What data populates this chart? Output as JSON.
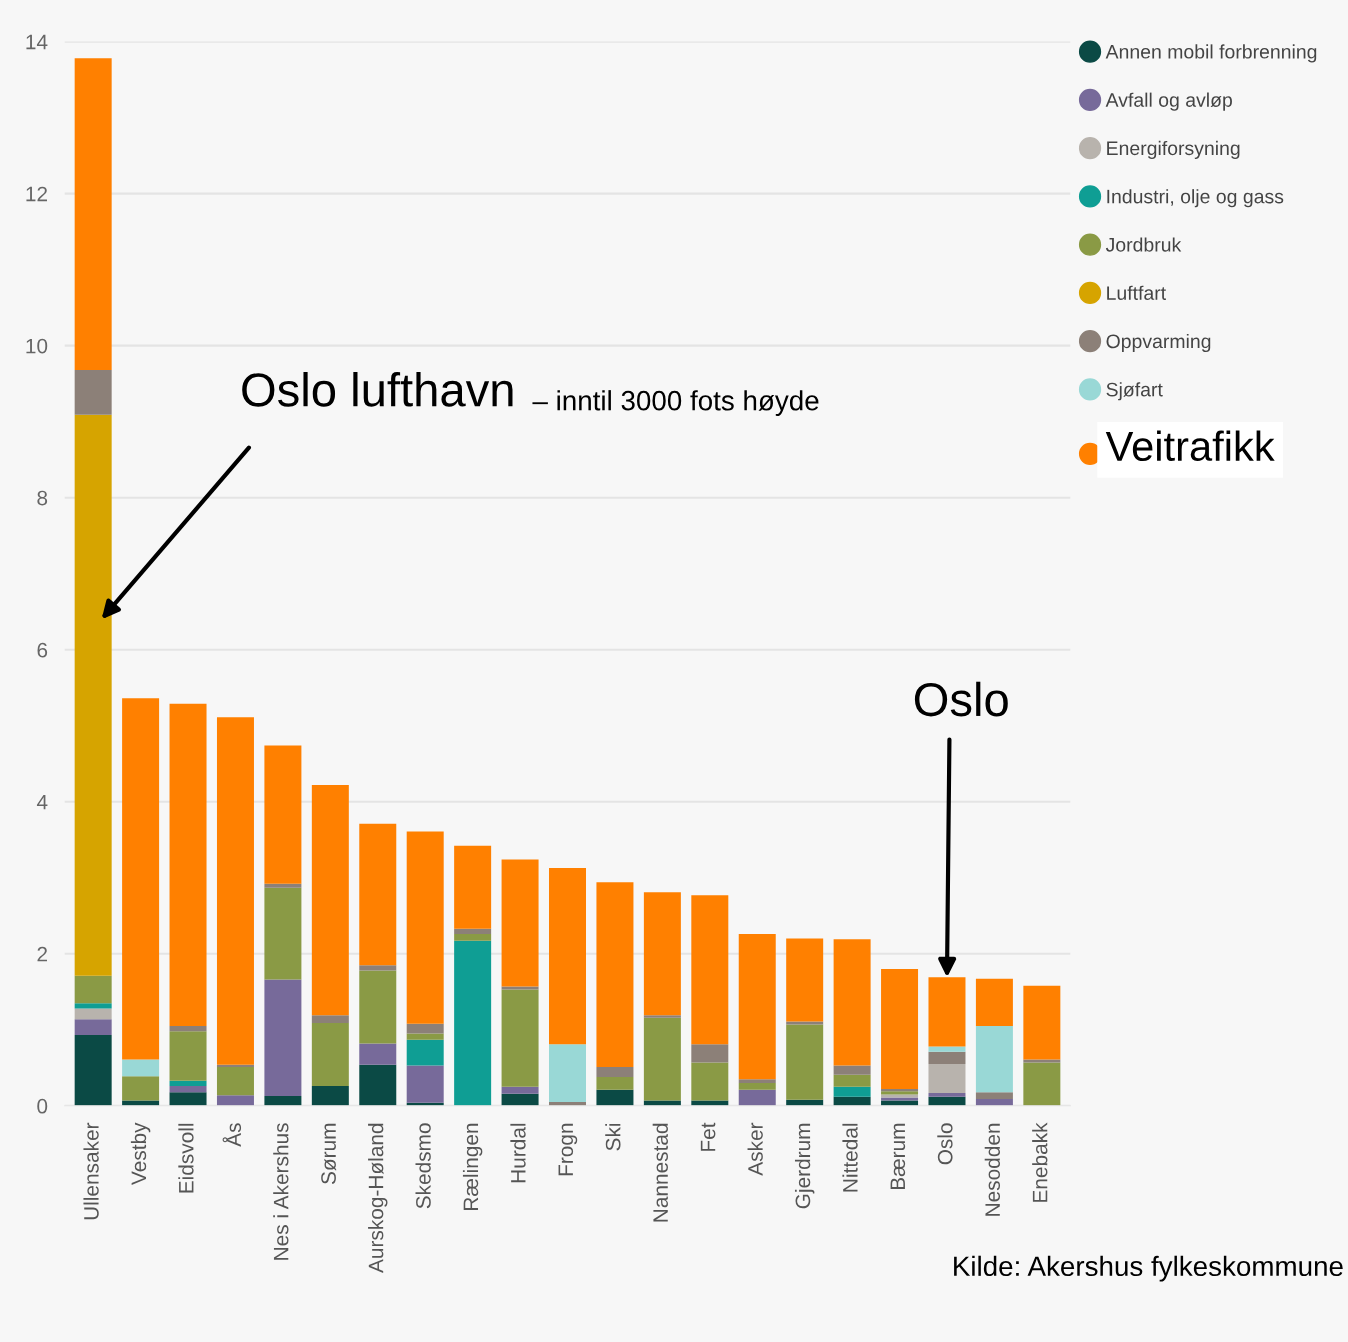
{
  "chart_data": {
    "type": "bar",
    "stacked": true,
    "categories": [
      "Ullensaker",
      "Vestby",
      "Eidsvoll",
      "Ås",
      "Nes i Akershus",
      "Sørum",
      "Aurskog-Høland",
      "Skedsmo",
      "Rælingen",
      "Hurdal",
      "Frogn",
      "Ski",
      "Nannestad",
      "Fet",
      "Asker",
      "Gjerdrum",
      "Nittedal",
      "Bærum",
      "Oslo",
      "Nesodden",
      "Enebakk"
    ],
    "series": [
      {
        "name": "Annen mobil forbrenning",
        "color": "#0b4a45",
        "values": [
          0.93,
          0.07,
          0.18,
          0,
          0.13,
          0.26,
          0.54,
          0.04,
          0,
          0.16,
          0,
          0.21,
          0.07,
          0.07,
          0,
          0.08,
          0.12,
          0.07,
          0.12,
          0,
          0
        ]
      },
      {
        "name": "Avfall og avløp",
        "color": "#776a9a",
        "values": [
          0.21,
          0,
          0.08,
          0.14,
          1.53,
          0,
          0.28,
          0.49,
          0,
          0.09,
          0,
          0,
          0,
          0,
          0.21,
          0,
          0,
          0.04,
          0.05,
          0.09,
          0
        ]
      },
      {
        "name": "Energiforsyning",
        "color": "#b8b3ad",
        "values": [
          0.14,
          0,
          0,
          0,
          0,
          0,
          0,
          0,
          0,
          0,
          0,
          0,
          0,
          0,
          0,
          0,
          0,
          0.04,
          0.38,
          0,
          0
        ]
      },
      {
        "name": "Industri, olje og gass",
        "color": "#0f9e94",
        "values": [
          0.07,
          0,
          0.07,
          0,
          0,
          0,
          0,
          0.34,
          2.17,
          0,
          0,
          0,
          0,
          0,
          0,
          0,
          0.13,
          0,
          0,
          0,
          0
        ]
      },
      {
        "name": "Jordbruk",
        "color": "#8a9a45",
        "values": [
          0.36,
          0.32,
          0.65,
          0.37,
          1.21,
          0.83,
          0.96,
          0.08,
          0.09,
          1.28,
          0,
          0.17,
          1.09,
          0.5,
          0.09,
          0.99,
          0.16,
          0.04,
          0,
          0,
          0.57
        ]
      },
      {
        "name": "Luftfart",
        "color": "#d6a400",
        "values": [
          7.38,
          0,
          0,
          0,
          0,
          0,
          0,
          0,
          0,
          0,
          0,
          0,
          0,
          0,
          0,
          0,
          0,
          0,
          0,
          0,
          0
        ]
      },
      {
        "name": "Oppvarming",
        "color": "#8c8078",
        "values": [
          0.59,
          0,
          0.07,
          0.03,
          0.05,
          0.1,
          0.07,
          0.13,
          0.07,
          0.04,
          0.05,
          0.13,
          0.03,
          0.24,
          0.05,
          0.04,
          0.12,
          0.03,
          0.16,
          0.09,
          0.04
        ]
      },
      {
        "name": "Sjøfart",
        "color": "#99d8d6",
        "values": [
          0,
          0.22,
          0,
          0,
          0,
          0,
          0,
          0,
          0,
          0,
          0.76,
          0,
          0,
          0,
          0,
          0,
          0,
          0,
          0.07,
          0.87,
          0
        ]
      },
      {
        "name": "Veitrafikk",
        "color": "#ff8000",
        "values": [
          4.1,
          4.75,
          4.24,
          4.57,
          1.82,
          3.03,
          1.86,
          2.53,
          1.09,
          1.67,
          2.32,
          2.43,
          1.62,
          1.96,
          1.91,
          1.09,
          1.66,
          1.58,
          0.91,
          0.62,
          0.97
        ]
      }
    ],
    "ylim": [
      0,
      14
    ],
    "yticks": [
      0,
      2,
      4,
      6,
      8,
      10,
      12,
      14
    ],
    "grid": "y",
    "legend": "right",
    "marker": "circle",
    "annotations": [
      "Oslo lufthavn",
      "– inntil 3000 fots høyde",
      {
        "text": "Oslo",
        "x": "Oslo",
        "y": 1.69
      },
      "Kilde: Akershus fylkeskommune"
    ]
  }
}
